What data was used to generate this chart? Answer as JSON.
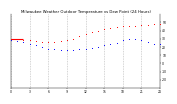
{
  "title": "Milwaukee Weather Outdoor Temperature vs Dew Point (24 Hours)",
  "title_fontsize": 2.8,
  "background_color": "#ffffff",
  "temp_color": "#ff0000",
  "dew_color": "#0000ff",
  "grid_color": "#aaaaaa",
  "ylim": [
    -30,
    60
  ],
  "xlim": [
    0,
    24
  ],
  "tick_fontsize": 2.2,
  "hours": [
    0,
    1,
    2,
    3,
    4,
    5,
    6,
    7,
    8,
    9,
    10,
    11,
    12,
    13,
    14,
    15,
    16,
    17,
    18,
    19,
    20,
    21,
    22,
    23,
    24
  ],
  "temp": [
    30,
    30,
    29,
    28,
    27,
    26,
    26,
    26,
    27,
    28,
    30,
    33,
    36,
    38,
    40,
    42,
    43,
    44,
    45,
    46,
    46,
    47,
    47,
    48,
    48
  ],
  "dew": [
    28,
    27,
    26,
    24,
    22,
    20,
    18,
    17,
    16,
    16,
    16,
    17,
    18,
    19,
    20,
    22,
    24,
    25,
    28,
    30,
    30,
    28,
    26,
    24,
    23
  ],
  "hline_y": 30,
  "hline_x": [
    0,
    2
  ],
  "grid_xticks": [
    0,
    3,
    6,
    9,
    12,
    15,
    18,
    21,
    24
  ],
  "xtick_labels": [
    "0",
    "3",
    "6",
    "9",
    "12",
    "15",
    "18",
    "21",
    "24"
  ],
  "ytick_labels": [
    "50",
    "40",
    "30",
    "20",
    "10",
    "0",
    "-10",
    "-20"
  ],
  "ytick_vals": [
    50,
    40,
    30,
    20,
    10,
    0,
    -10,
    -20
  ]
}
